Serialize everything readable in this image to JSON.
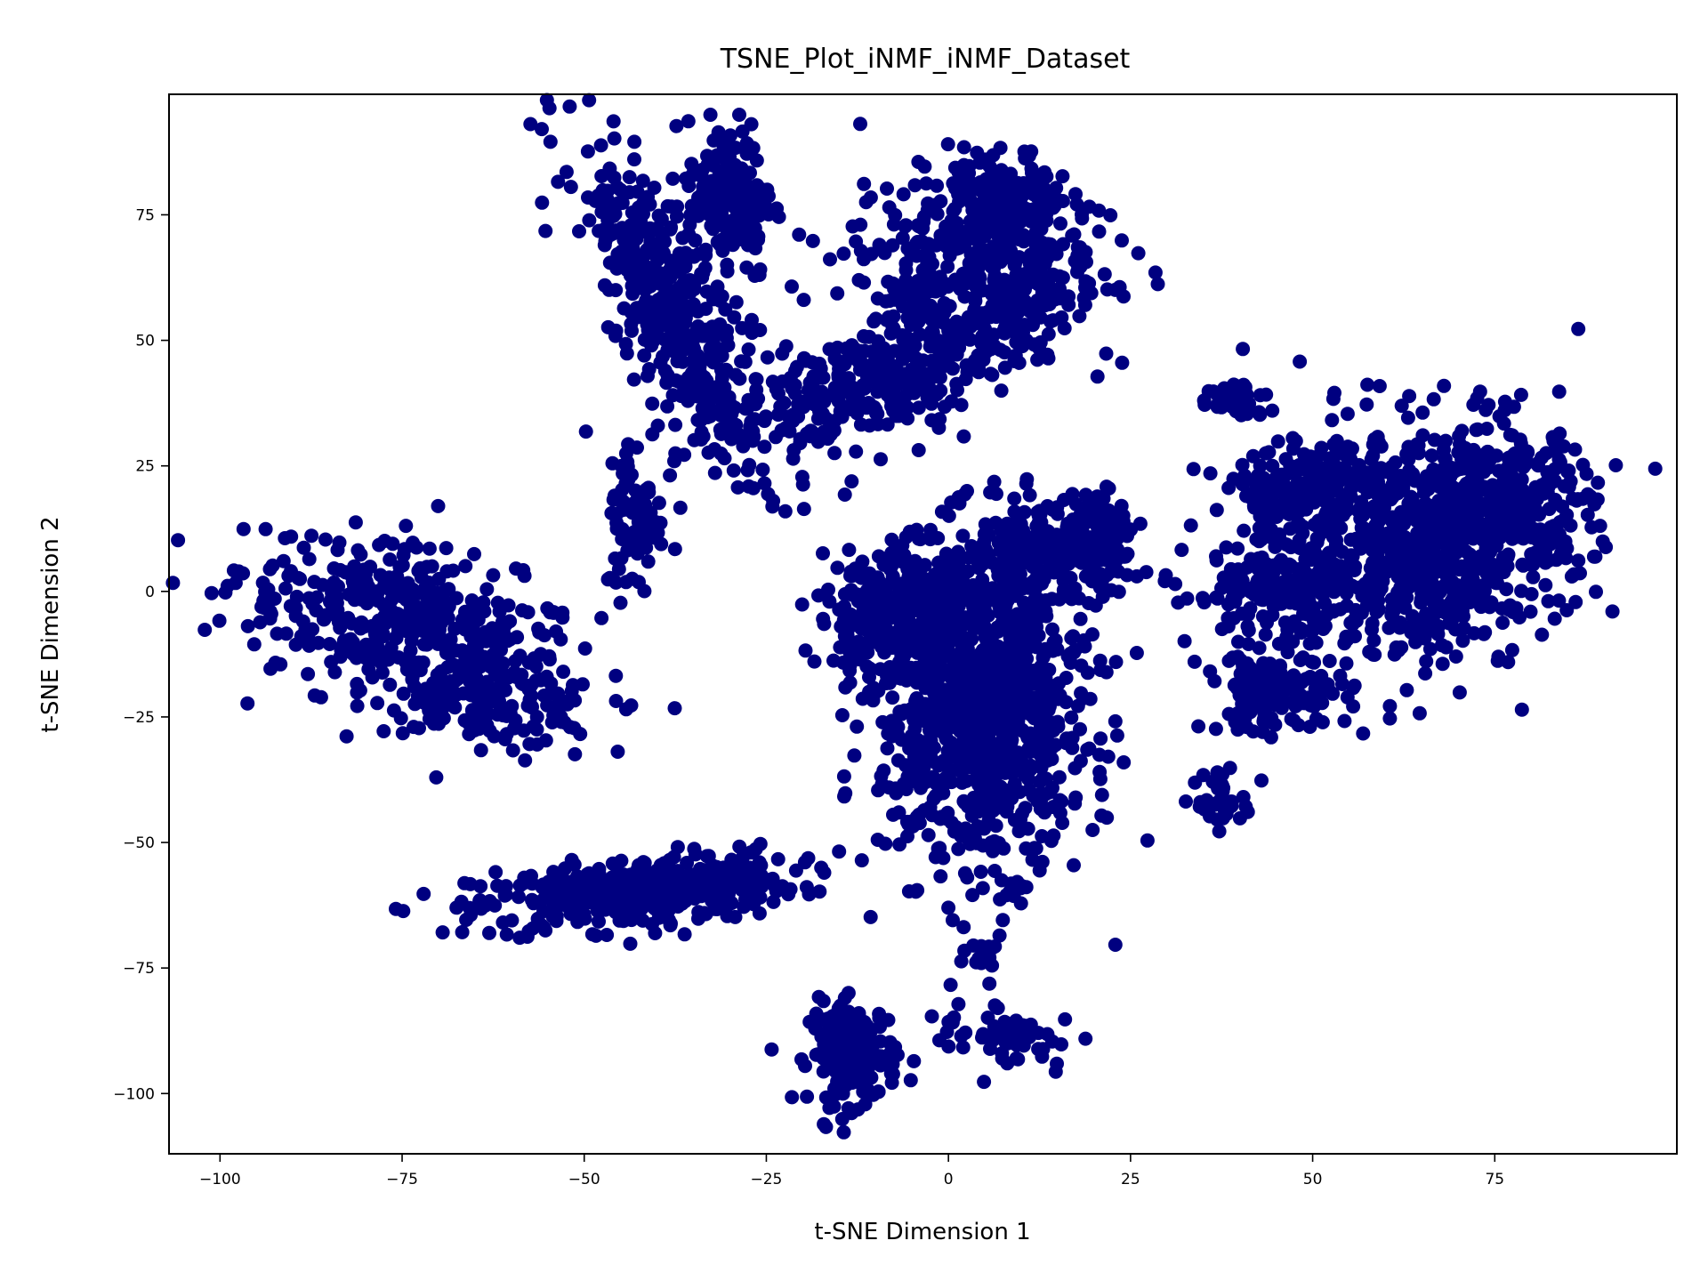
{
  "chart_data": {
    "type": "scatter",
    "title": "TSNE_Plot_iNMF_iNMF_Dataset",
    "xlabel": "t-SNE Dimension 1",
    "ylabel": "t-SNE Dimension 2",
    "xlim": [
      -107,
      100
    ],
    "ylim": [
      -112,
      99
    ],
    "xticks": [
      -100,
      -75,
      -50,
      -25,
      0,
      25,
      50,
      75
    ],
    "yticks": [
      -100,
      -75,
      -50,
      -25,
      0,
      25,
      50,
      75
    ],
    "xtick_labels": [
      "−100",
      "−75",
      "−50",
      "−25",
      "0",
      "25",
      "50",
      "75"
    ],
    "ytick_labels": [
      "−100",
      "−75",
      "−50",
      "−25",
      "0",
      "25",
      "50",
      "75"
    ],
    "grid": false,
    "point_color": "#000080",
    "clusters": [
      {
        "cx": -75,
        "cy": -6,
        "sx": 12,
        "sy": 7,
        "rot": -25,
        "n": 420
      },
      {
        "cx": -63,
        "cy": -22,
        "sx": 8,
        "sy": 4,
        "rot": -10,
        "n": 160
      },
      {
        "cx": -43,
        "cy": -60,
        "sx": 11,
        "sy": 3.5,
        "rot": 8,
        "n": 420
      },
      {
        "cx": -13,
        "cy": -92,
        "sx": 3,
        "sy": 5,
        "rot": 0,
        "n": 170
      },
      {
        "cx": -38,
        "cy": 55,
        "sx": 3.5,
        "sy": 17,
        "rot": 20,
        "n": 420
      },
      {
        "cx": -30,
        "cy": 78,
        "sx": 3,
        "sy": 8,
        "rot": 0,
        "n": 200
      },
      {
        "cx": -43,
        "cy": 15,
        "sx": 2,
        "sy": 8,
        "rot": 0,
        "n": 80
      },
      {
        "cx": -10,
        "cy": 42,
        "sx": 13,
        "sy": 5,
        "rot": 33,
        "n": 360
      },
      {
        "cx": 4,
        "cy": 65,
        "sx": 8,
        "sy": 9,
        "rot": 35,
        "n": 380
      },
      {
        "cx": 8,
        "cy": 78,
        "sx": 4,
        "sy": 5,
        "rot": 0,
        "n": 150
      },
      {
        "cx": 5,
        "cy": -22,
        "sx": 7,
        "sy": 16,
        "rot": 0,
        "n": 1100
      },
      {
        "cx": -8,
        "cy": -5,
        "sx": 5,
        "sy": 8,
        "rot": 0,
        "n": 250
      },
      {
        "cx": 14,
        "cy": 8,
        "sx": 5,
        "sy": 4,
        "rot": 0,
        "n": 180
      },
      {
        "cx": 20,
        "cy": 12,
        "sx": 3,
        "sy": 5,
        "rot": 0,
        "n": 100
      },
      {
        "cx": 8,
        "cy": -88,
        "sx": 5,
        "sy": 3,
        "rot": -20,
        "n": 60
      },
      {
        "cx": 5,
        "cy": -72,
        "sx": 1.5,
        "sy": 2,
        "rot": 0,
        "n": 20
      },
      {
        "cx": 38,
        "cy": -42,
        "sx": 2,
        "sy": 2.5,
        "rot": 0,
        "n": 40
      },
      {
        "cx": 39,
        "cy": 38,
        "sx": 2.5,
        "sy": 2,
        "rot": 0,
        "n": 40
      },
      {
        "cx": 48,
        "cy": 20,
        "sx": 4,
        "sy": 4,
        "rot": 0,
        "n": 160
      },
      {
        "cx": 45,
        "cy": 0,
        "sx": 6,
        "sy": 5,
        "rot": 0,
        "n": 150
      },
      {
        "cx": 45,
        "cy": -20,
        "sx": 5,
        "sy": 4,
        "rot": 0,
        "n": 150
      },
      {
        "cx": 64,
        "cy": 10,
        "sx": 10,
        "sy": 12,
        "rot": 0,
        "n": 700
      },
      {
        "cx": 75,
        "cy": 18,
        "sx": 6,
        "sy": 8,
        "rot": 0,
        "n": 250
      },
      {
        "cx": 88,
        "cy": 18,
        "sx": 1.5,
        "sy": 1,
        "rot": 0,
        "n": 10
      }
    ]
  }
}
